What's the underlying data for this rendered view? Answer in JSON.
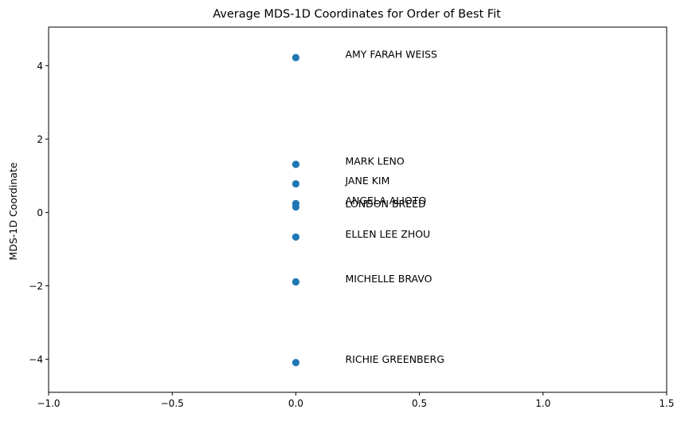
{
  "chart_data": {
    "type": "scatter",
    "title": "Average MDS-1D Coordinates for Order of Best Fit",
    "xlabel": "",
    "ylabel": "MDS-1D Coordinate",
    "xlim": [
      -1.0,
      1.5
    ],
    "ylim": [
      -4.9,
      5.05
    ],
    "x_ticks": [
      -1.0,
      -0.5,
      0.0,
      0.5,
      1.0,
      1.5
    ],
    "x_tick_labels": [
      "−1.0",
      "−0.5",
      "0.0",
      "0.5",
      "1.0",
      "1.5"
    ],
    "y_ticks": [
      -4,
      -2,
      0,
      2,
      4
    ],
    "y_tick_labels": [
      "−4",
      "−2",
      "0",
      "2",
      "4"
    ],
    "grid": false,
    "marker_color": "#1f77b4",
    "label_x_offset": 0.2,
    "points": [
      {
        "label": "AMY FARAH WEISS",
        "x": 0.0,
        "y": 4.22
      },
      {
        "label": "MARK LENO",
        "x": 0.0,
        "y": 1.31
      },
      {
        "label": "JANE KIM",
        "x": 0.0,
        "y": 0.78
      },
      {
        "label": "ANGELA ALIOTO",
        "x": 0.0,
        "y": 0.24
      },
      {
        "label": "LONDON BREED",
        "x": 0.0,
        "y": 0.15
      },
      {
        "label": "ELLEN LEE ZHOU",
        "x": 0.0,
        "y": -0.67
      },
      {
        "label": "MICHELLE BRAVO",
        "x": 0.0,
        "y": -1.89
      },
      {
        "label": "RICHIE GREENBERG",
        "x": 0.0,
        "y": -4.09
      }
    ]
  }
}
